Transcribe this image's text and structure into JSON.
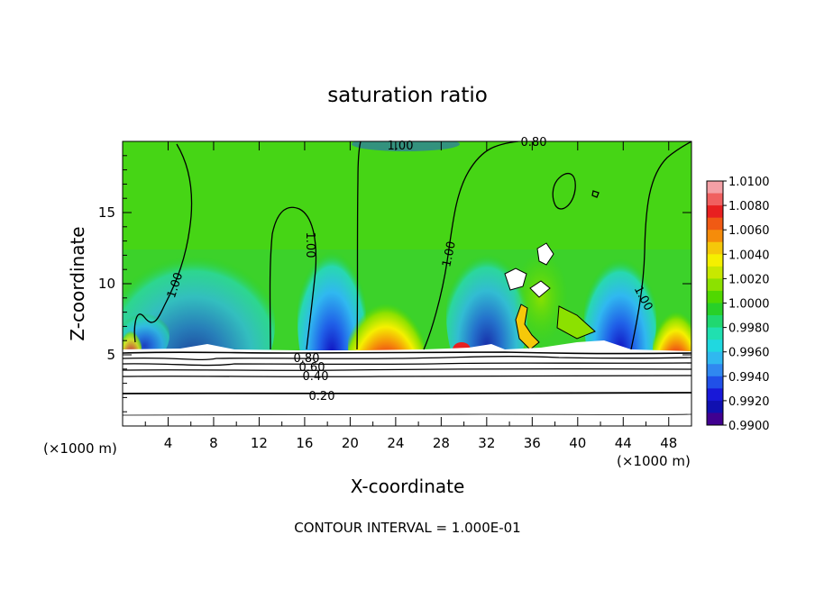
{
  "chart_data": {
    "type": "heatmap",
    "title": "saturation ratio",
    "xlabel": "X-coordinate",
    "ylabel": "Z-coordinate",
    "x_unit_left": "(×1000 m)",
    "x_unit_right": "(×1000 m)",
    "footer": "CONTOUR INTERVAL = 1.000E-01",
    "xlim": [
      0,
      50
    ],
    "ylim": [
      0,
      20
    ],
    "x_ticks": [
      4,
      8,
      12,
      16,
      20,
      24,
      28,
      32,
      36,
      40,
      44,
      48
    ],
    "y_ticks": [
      5,
      10,
      15
    ],
    "colorbar": {
      "ticks": [
        "1.0100",
        "1.0080",
        "1.0060",
        "1.0040",
        "1.0020",
        "1.0000",
        "0.9980",
        "0.9960",
        "0.9940",
        "0.9920",
        "0.9900"
      ],
      "colors": [
        "#f4a0a6",
        "#f06060",
        "#e82020",
        "#f05a14",
        "#f58c0a",
        "#f5c80a",
        "#f5f000",
        "#c8e800",
        "#8ce100",
        "#50d800",
        "#28d028",
        "#20d870",
        "#20e0b0",
        "#20d8e0",
        "#30b8f0",
        "#3088f0",
        "#2050e8",
        "#1818d8",
        "#1010b0",
        "#400090"
      ]
    },
    "contour_labels": [
      "1.00",
      "1.00",
      "1.00",
      "1.00",
      "1.00",
      "0.80",
      "0.80",
      "0.60",
      "0.40",
      "0.20"
    ]
  }
}
